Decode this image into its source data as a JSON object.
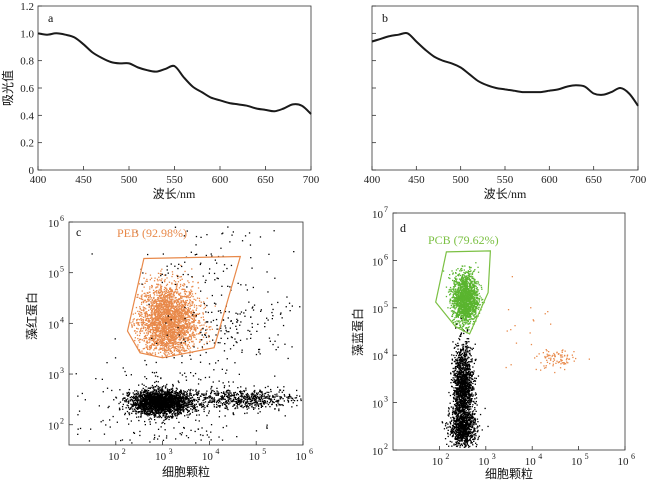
{
  "chart_data": [
    {
      "panel": "a",
      "type": "line",
      "xlabel": "波长/nm",
      "ylabel": "吸光值",
      "xlim": [
        400,
        700
      ],
      "ylim": [
        0,
        1.2
      ],
      "xticks": [
        "400",
        "450",
        "500",
        "550",
        "600",
        "650",
        "700"
      ],
      "yticks": [
        "0",
        "0.2",
        "0.4",
        "0.6",
        "0.8",
        "1.0",
        "1.2"
      ],
      "x": [
        400,
        410,
        420,
        430,
        440,
        450,
        460,
        470,
        480,
        490,
        500,
        510,
        520,
        530,
        540,
        550,
        560,
        570,
        580,
        590,
        600,
        610,
        620,
        630,
        640,
        650,
        660,
        670,
        680,
        690,
        700
      ],
      "values": [
        1.0,
        0.99,
        1.0,
        0.99,
        0.97,
        0.92,
        0.86,
        0.82,
        0.79,
        0.78,
        0.78,
        0.75,
        0.73,
        0.72,
        0.74,
        0.76,
        0.68,
        0.61,
        0.57,
        0.53,
        0.51,
        0.49,
        0.48,
        0.47,
        0.45,
        0.44,
        0.43,
        0.45,
        0.48,
        0.47,
        0.41
      ],
      "color": "#1a1a1a"
    },
    {
      "panel": "b",
      "type": "line",
      "xlabel": "波长/nm",
      "xlim": [
        400,
        700
      ],
      "ylim": [
        0,
        1.2
      ],
      "xticks": [
        "400",
        "450",
        "500",
        "550",
        "600",
        "650",
        "700"
      ],
      "x": [
        400,
        410,
        420,
        430,
        440,
        450,
        460,
        470,
        480,
        490,
        500,
        510,
        520,
        530,
        540,
        550,
        560,
        570,
        580,
        590,
        600,
        610,
        620,
        630,
        640,
        650,
        660,
        670,
        680,
        690,
        700
      ],
      "values": [
        0.94,
        0.96,
        0.98,
        0.99,
        1.0,
        0.94,
        0.88,
        0.83,
        0.8,
        0.78,
        0.75,
        0.7,
        0.65,
        0.62,
        0.6,
        0.59,
        0.58,
        0.57,
        0.57,
        0.57,
        0.58,
        0.59,
        0.61,
        0.62,
        0.61,
        0.56,
        0.55,
        0.57,
        0.6,
        0.56,
        0.47
      ],
      "color": "#1a1a1a"
    },
    {
      "panel": "c",
      "type": "scatter",
      "xlabel": "细胞颗粒",
      "ylabel": "藻红蛋白",
      "xscale": "log",
      "yscale": "log",
      "xlim": [
        1.0,
        6.0
      ],
      "ylim": [
        1.6,
        6.0
      ],
      "xticks": [
        "10",
        "10",
        "10",
        "10",
        "10"
      ],
      "xtick_exp": [
        "2",
        "3",
        "4",
        "5",
        "6"
      ],
      "yticks": [
        "10",
        "10",
        "10",
        "10",
        "10"
      ],
      "ytick_exp": [
        "2",
        "3",
        "4",
        "5",
        "6"
      ],
      "gate_label": "PEB (92.98%)",
      "gate_color": "#e8894a",
      "gate_polygon": [
        [
          2.6,
          5.28
        ],
        [
          4.66,
          5.32
        ],
        [
          4.1,
          3.52
        ],
        [
          3.0,
          3.32
        ],
        [
          2.52,
          3.42
        ],
        [
          2.25,
          3.85
        ]
      ],
      "populations": [
        {
          "name": "",
          "color": "#e8894a",
          "center": [
            3.1,
            4.05
          ],
          "spread": [
            0.32,
            0.38
          ],
          "count": 2600,
          "clip_to_gate": true
        },
        {
          "name": "",
          "color": "#000000",
          "center": [
            2.95,
            2.45
          ],
          "spread": [
            0.32,
            0.12
          ],
          "count": 2300
        },
        {
          "name": "",
          "color": "#000000",
          "center": [
            4.7,
            2.52
          ],
          "spread": [
            0.6,
            0.1
          ],
          "count": 600
        },
        {
          "name": "",
          "color": "#000000",
          "center": [
            4.5,
            3.95
          ],
          "spread": [
            0.6,
            0.35
          ],
          "count": 160
        },
        {
          "name": "",
          "color": "#000000",
          "center": [
            3.9,
            5.2
          ],
          "spread": [
            0.8,
            0.5
          ],
          "count": 90
        },
        {
          "name": "",
          "color": "#000000",
          "center": [
            3.0,
            2.3
          ],
          "spread": [
            1.0,
            0.55
          ],
          "count": 260
        }
      ]
    },
    {
      "panel": "d",
      "type": "scatter",
      "xlabel": "细胞颗粒",
      "ylabel": "藻蓝蛋白",
      "xscale": "log",
      "yscale": "log",
      "xlim": [
        1.0,
        6.0
      ],
      "ylim": [
        2.0,
        7.0
      ],
      "xticks": [
        "10",
        "10",
        "10",
        "10",
        "10"
      ],
      "xtick_exp": [
        "2",
        "3",
        "4",
        "5",
        "6"
      ],
      "yticks": [
        "10",
        "10",
        "10",
        "10",
        "10",
        "10"
      ],
      "ytick_exp": [
        "2",
        "3",
        "4",
        "5",
        "6",
        "7"
      ],
      "gate_label": "PCB (79.62%)",
      "gate_color": "#7bc043",
      "gate_polygon": [
        [
          2.15,
          6.18
        ],
        [
          3.1,
          6.2
        ],
        [
          3.05,
          5.32
        ],
        [
          2.65,
          4.45
        ],
        [
          2.35,
          4.6
        ],
        [
          1.92,
          5.12
        ]
      ],
      "populations": [
        {
          "name": "",
          "color": "#5ab52f",
          "center": [
            2.55,
            5.2
          ],
          "spread": [
            0.14,
            0.28
          ],
          "count": 1600,
          "clip_to_gate": true
        },
        {
          "name": "",
          "color": "#000000",
          "center": [
            2.5,
            3.3
          ],
          "spread": [
            0.11,
            0.45
          ],
          "count": 1500
        },
        {
          "name": "",
          "color": "#000000",
          "center": [
            2.5,
            2.45
          ],
          "spread": [
            0.15,
            0.18
          ],
          "count": 700
        },
        {
          "name": "",
          "color": "#e8894a",
          "center": [
            4.5,
            3.92
          ],
          "spread": [
            0.2,
            0.12
          ],
          "count": 90
        },
        {
          "name": "",
          "color": "#e8894a",
          "center": [
            3.9,
            4.6
          ],
          "spread": [
            0.45,
            0.45
          ],
          "count": 18
        }
      ]
    }
  ]
}
